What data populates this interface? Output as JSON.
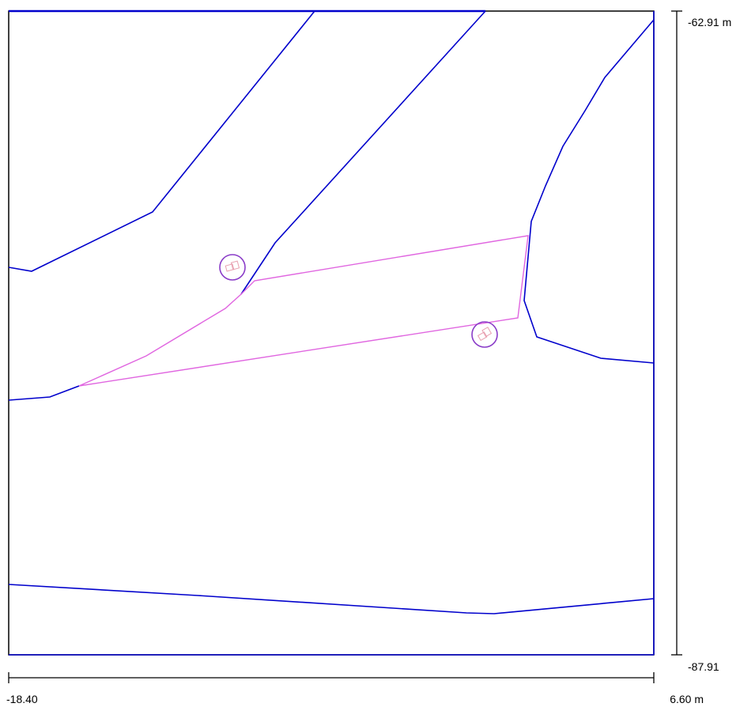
{
  "scale": {
    "y_top_label": "-62.91 m",
    "y_bottom_label": "-87.91",
    "x_left_label": "-18.40",
    "x_right_label": "6.60 m"
  },
  "colors": {
    "frame": "#000000",
    "boundary": "#0000cc",
    "selection": "#e066e0",
    "marker": "#8a3cc8",
    "marker_inner": "#e8a0b0"
  },
  "icons": [
    "point-marker-icon",
    "point-marker-icon"
  ]
}
